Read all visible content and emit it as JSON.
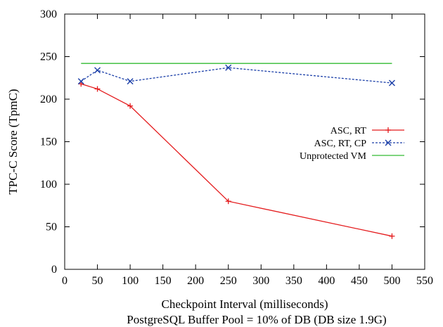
{
  "chart_data": {
    "type": "line",
    "xlabel": "Checkpoint Interval (milliseconds)",
    "subtitle": "PostgreSQL Buffer Pool = 10% of DB (DB size 1.9G)",
    "ylabel": "TPC-C Score (TpmC)",
    "xlim": [
      0,
      550
    ],
    "ylim": [
      0,
      300
    ],
    "xticks": [
      0,
      50,
      100,
      150,
      200,
      250,
      300,
      350,
      400,
      450,
      500,
      550
    ],
    "yticks": [
      0,
      50,
      100,
      150,
      200,
      250,
      300
    ],
    "grid": false,
    "legend_position": "right-middle",
    "series": [
      {
        "name": "ASC, RT",
        "color": "#e41a1c",
        "marker": "plus",
        "dash": "solid",
        "x": [
          25,
          50,
          100,
          250,
          500
        ],
        "y": [
          218,
          212,
          192,
          80,
          39
        ]
      },
      {
        "name": "ASC, RT, CP",
        "color": "#1a3ea8",
        "marker": "x",
        "dash": "dashed",
        "x": [
          25,
          50,
          100,
          250,
          500
        ],
        "y": [
          221,
          234,
          221,
          237,
          219
        ]
      },
      {
        "name": "Unprotected VM",
        "color": "#33bb33",
        "marker": "none",
        "dash": "solid",
        "x": [
          25,
          500
        ],
        "y": [
          242,
          242
        ]
      }
    ]
  }
}
